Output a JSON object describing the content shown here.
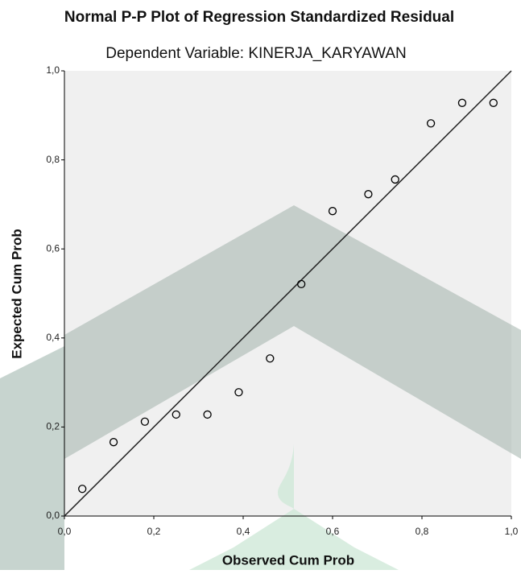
{
  "chart_data": {
    "type": "scatter",
    "title": "Normal P-P Plot of Regression Standardized Residual",
    "subtitle": "Dependent Variable: KINERJA_KARYAWAN",
    "x_label": "Observed Cum Prob",
    "y_label": "Expected Cum Prob",
    "x": [
      0.04,
      0.11,
      0.18,
      0.25,
      0.32,
      0.39,
      0.46,
      0.53,
      0.6,
      0.68,
      0.74,
      0.82,
      0.89,
      0.96
    ],
    "values": [
      0.061,
      0.166,
      0.212,
      0.228,
      0.228,
      0.278,
      0.354,
      0.521,
      0.685,
      0.723,
      0.756,
      0.882,
      0.928,
      0.928
    ],
    "color": "#000000",
    "xlim": [
      0,
      1
    ],
    "ylim": [
      0,
      1
    ],
    "xticks": [
      {
        "value": 0,
        "label": "0,0"
      },
      {
        "value": 0.2,
        "label": "0,2"
      },
      {
        "value": 0.4,
        "label": "0,4"
      },
      {
        "value": 0.6,
        "label": "0,6"
      },
      {
        "value": 0.8,
        "label": "0,8"
      },
      {
        "value": 1,
        "label": "1,0"
      }
    ],
    "yticks": [
      {
        "value": 0,
        "label": "0,0"
      },
      {
        "value": 0.2,
        "label": "0,2"
      },
      {
        "value": 0.4,
        "label": "0,4"
      },
      {
        "value": 0.6,
        "label": "0,6"
      },
      {
        "value": 0.8,
        "label": "0,8"
      },
      {
        "value": 1,
        "label": "1,0"
      }
    ],
    "reference_line": true
  }
}
